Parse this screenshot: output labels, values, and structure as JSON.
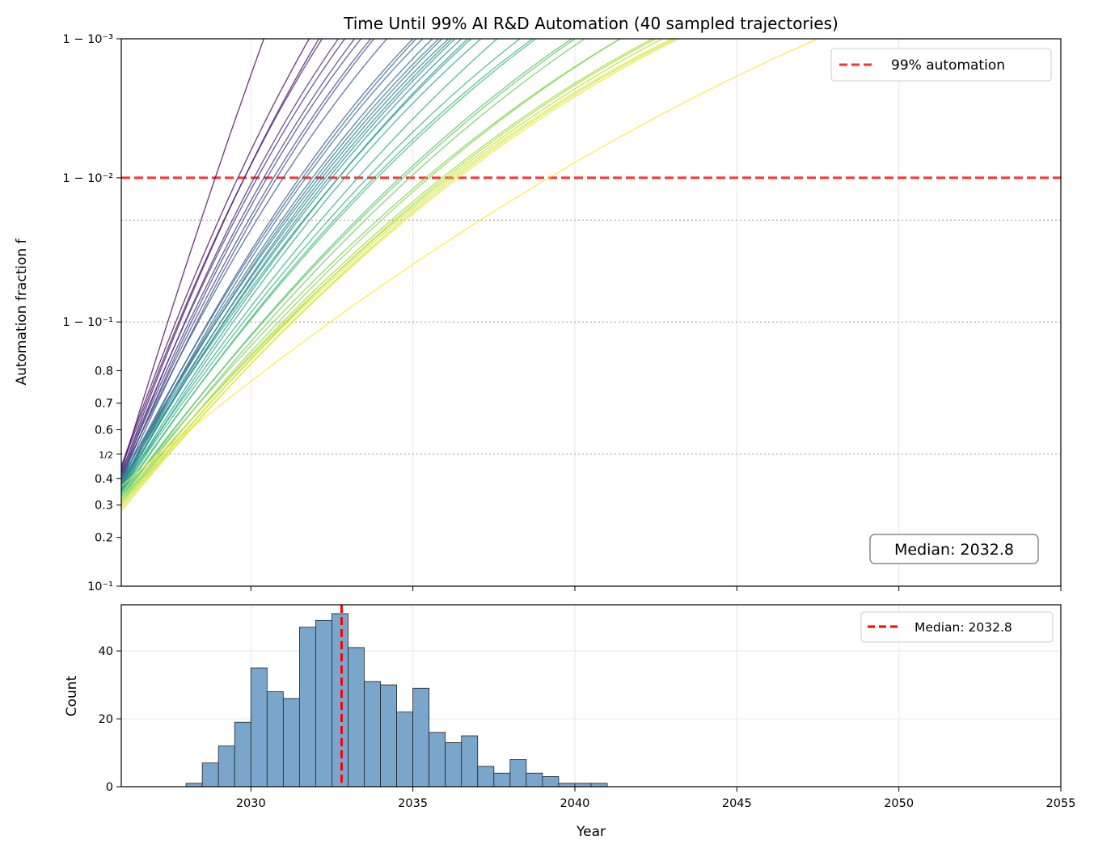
{
  "chart_data": [
    {
      "type": "line",
      "title": "Time Until 99% AI R&D Automation (40 sampled trajectories)",
      "xlabel": "",
      "ylabel": "Automation fraction f",
      "xlim": [
        2026,
        2055
      ],
      "ylim": [
        0.1,
        0.999
      ],
      "yscale": "logit",
      "grid": true,
      "yticks": [
        {
          "value": 0.999,
          "label": "1 − 10⁻³"
        },
        {
          "value": 0.99,
          "label": "1 − 10⁻²"
        },
        {
          "value": 0.9,
          "label": "1 − 10⁻¹"
        },
        {
          "value": 0.8,
          "label": "0.8"
        },
        {
          "value": 0.7,
          "label": "0.7"
        },
        {
          "value": 0.6,
          "label": "0.6"
        },
        {
          "value": 0.5,
          "label": "1/2"
        },
        {
          "value": 0.4,
          "label": "0.4"
        },
        {
          "value": 0.3,
          "label": "0.3"
        },
        {
          "value": 0.2,
          "label": "0.2"
        },
        {
          "value": 0.1,
          "label": "10⁻¹"
        }
      ],
      "reference_lines": [
        {
          "y": 0.99,
          "style": "dashed",
          "color": "#ff0000",
          "label": "99% automation"
        },
        {
          "y": 0.98,
          "style": "dotted",
          "color": "#999999"
        },
        {
          "y": 0.9,
          "style": "dotted",
          "color": "#999999"
        },
        {
          "y": 0.5,
          "style": "dotted",
          "color": "#999999"
        }
      ],
      "legend": {
        "placement": "top-right",
        "entries": [
          "99% automation"
        ]
      },
      "annotation": "Median: 2032.8",
      "colormap": "viridis",
      "trajectories_note_fields": [
        "f_2026",
        "year_f_0.99",
        "year_f_0.999"
      ],
      "trajectories": [
        [
          0.43,
          2028.9,
          2030.4
        ],
        [
          0.45,
          2029.6,
          2031.8
        ],
        [
          0.42,
          2029.8,
          2032.1
        ],
        [
          0.44,
          2029.8,
          2032.2
        ],
        [
          0.4,
          2030.1,
          2032.7
        ],
        [
          0.42,
          2030.2,
          2032.9
        ],
        [
          0.41,
          2030.4,
          2033.2
        ],
        [
          0.39,
          2030.5,
          2033.4
        ],
        [
          0.4,
          2030.7,
          2033.7
        ],
        [
          0.38,
          2030.8,
          2033.8
        ],
        [
          0.41,
          2031.0,
          2034.2
        ],
        [
          0.37,
          2031.5,
          2035.0
        ],
        [
          0.39,
          2031.6,
          2035.1
        ],
        [
          0.36,
          2031.7,
          2035.3
        ],
        [
          0.38,
          2031.9,
          2035.6
        ],
        [
          0.37,
          2032.0,
          2035.8
        ],
        [
          0.4,
          2032.1,
          2035.9
        ],
        [
          0.35,
          2032.2,
          2036.1
        ],
        [
          0.38,
          2032.3,
          2036.2
        ],
        [
          0.36,
          2032.4,
          2036.3
        ],
        [
          0.37,
          2032.5,
          2036.5
        ],
        [
          0.35,
          2032.7,
          2036.7
        ],
        [
          0.39,
          2032.7,
          2036.8
        ],
        [
          0.34,
          2032.9,
          2037.1
        ],
        [
          0.36,
          2033.3,
          2037.6
        ],
        [
          0.35,
          2033.6,
          2038.3
        ],
        [
          0.33,
          2033.8,
          2038.7
        ],
        [
          0.34,
          2033.9,
          2038.8
        ],
        [
          0.32,
          2034.6,
          2039.9
        ],
        [
          0.33,
          2034.7,
          2040.0
        ],
        [
          0.31,
          2034.9,
          2040.3
        ],
        [
          0.33,
          2035.4,
          2041.4
        ],
        [
          0.3,
          2035.5,
          2041.4
        ],
        [
          0.31,
          2035.9,
          2042.4
        ],
        [
          0.29,
          2036.0,
          2042.5
        ],
        [
          0.32,
          2036.1,
          2042.7
        ],
        [
          0.28,
          2036.3,
          2043.1
        ],
        [
          0.3,
          2036.2,
          2043.0
        ],
        [
          0.29,
          2036.4,
          2043.2
        ],
        [
          0.37,
          2039.2,
          2047.5
        ]
      ]
    },
    {
      "type": "bar",
      "title": "",
      "xlabel": "Year",
      "ylabel": "Count",
      "xlim": [
        2026,
        2055
      ],
      "ylim": [
        0,
        53.6
      ],
      "grid": true,
      "xticks": [
        "2030",
        "2035",
        "2040",
        "2045",
        "2050",
        "2055"
      ],
      "xtick_values": [
        2030,
        2035,
        2040,
        2045,
        2050,
        2055
      ],
      "yticks": [
        "0",
        "20",
        "40"
      ],
      "ytick_values": [
        0,
        20,
        40
      ],
      "bin_start": 2028.0,
      "bin_width": 0.5,
      "values": [
        1,
        7,
        12,
        19,
        35,
        28,
        26,
        47,
        49,
        51,
        41,
        31,
        30,
        22,
        29,
        16,
        13,
        15,
        6,
        4,
        8,
        4,
        3,
        1,
        1,
        1
      ],
      "bar_color": "#7ba6cb",
      "median": 2032.8,
      "legend": {
        "placement": "top-right",
        "entries": [
          "Median: 2032.8"
        ]
      }
    }
  ]
}
